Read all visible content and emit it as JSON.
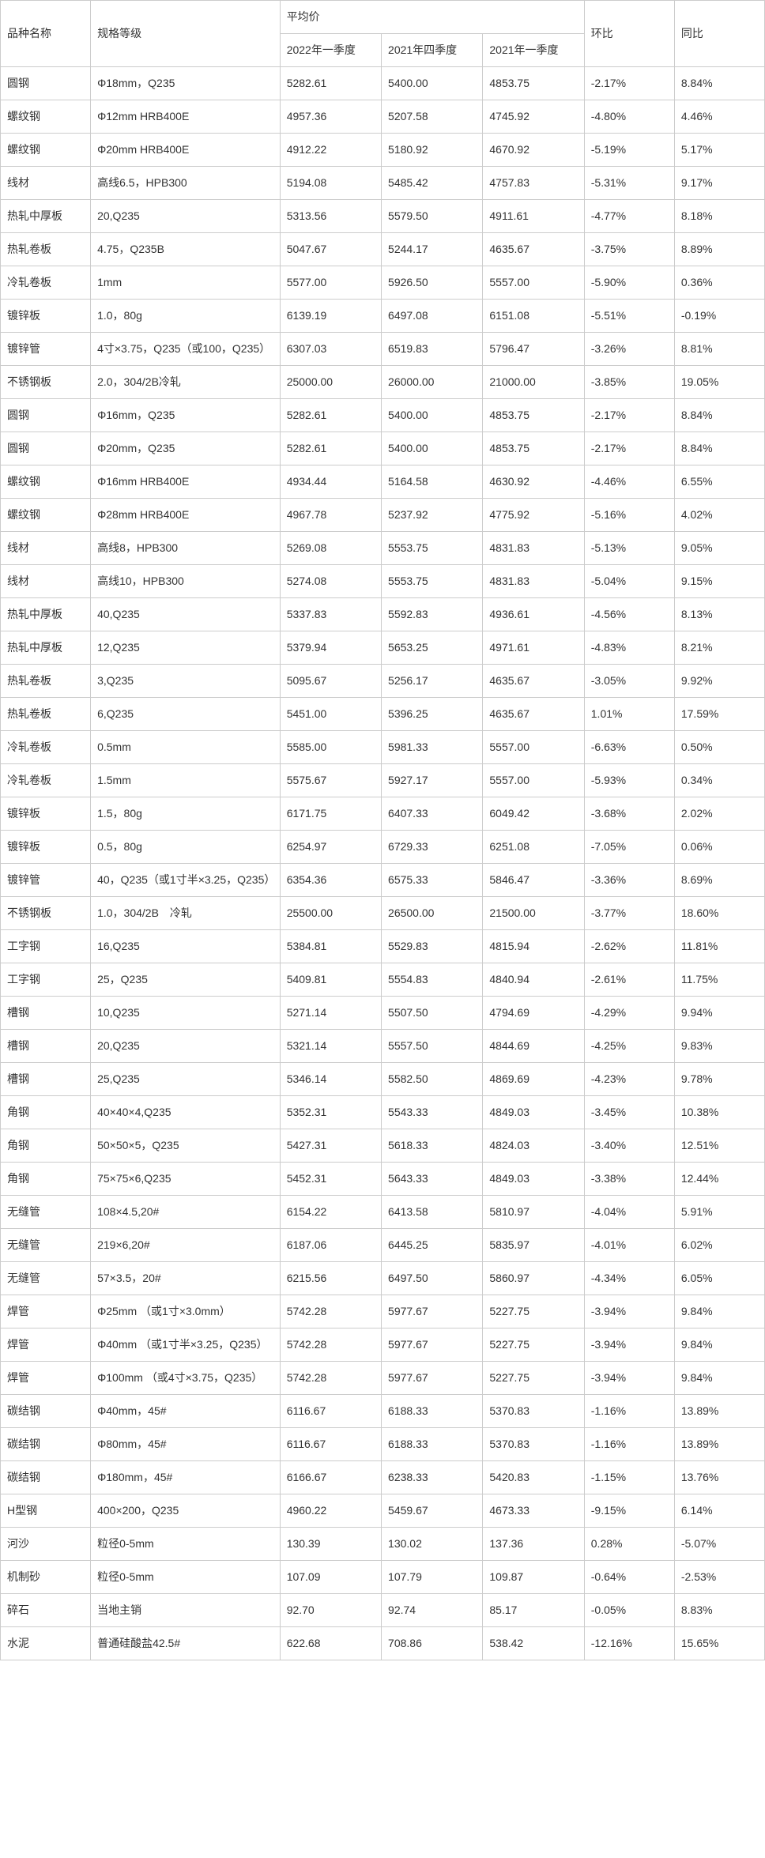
{
  "headers": {
    "col1": "品种名称",
    "col2": "规格等级",
    "avgPrice": "平均价",
    "q1_2022": "2022年一季度",
    "q4_2021": "2021年四季度",
    "q1_2021": "2021年一季度",
    "qoq": "环比",
    "yoy": "同比"
  },
  "rows": [
    {
      "name": "圆钢",
      "spec": "Φ18mm，Q235",
      "p1": "5282.61",
      "p2": "5400.00",
      "p3": "4853.75",
      "qoq": "-2.17%",
      "yoy": "8.84%"
    },
    {
      "name": "螺纹钢",
      "spec": "Φ12mm HRB400E",
      "p1": "4957.36",
      "p2": "5207.58",
      "p3": "4745.92",
      "qoq": "-4.80%",
      "yoy": "4.46%"
    },
    {
      "name": "螺纹钢",
      "spec": "Φ20mm HRB400E",
      "p1": "4912.22",
      "p2": "5180.92",
      "p3": "4670.92",
      "qoq": "-5.19%",
      "yoy": "5.17%"
    },
    {
      "name": "线材",
      "spec": "高线6.5，HPB300",
      "p1": "5194.08",
      "p2": "5485.42",
      "p3": "4757.83",
      "qoq": "-5.31%",
      "yoy": "9.17%"
    },
    {
      "name": "热轧中厚板",
      "spec": "20,Q235",
      "p1": "5313.56",
      "p2": "5579.50",
      "p3": "4911.61",
      "qoq": "-4.77%",
      "yoy": "8.18%"
    },
    {
      "name": "热轧卷板",
      "spec": "4.75，Q235B",
      "p1": "5047.67",
      "p2": "5244.17",
      "p3": "4635.67",
      "qoq": "-3.75%",
      "yoy": "8.89%"
    },
    {
      "name": "冷轧卷板",
      "spec": "1mm",
      "p1": "5577.00",
      "p2": "5926.50",
      "p3": "5557.00",
      "qoq": "-5.90%",
      "yoy": "0.36%"
    },
    {
      "name": "镀锌板",
      "spec": "1.0，80g",
      "p1": "6139.19",
      "p2": "6497.08",
      "p3": "6151.08",
      "qoq": "-5.51%",
      "yoy": "-0.19%"
    },
    {
      "name": "镀锌管",
      "spec": "4寸×3.75，Q235（或100，Q235）",
      "p1": "6307.03",
      "p2": "6519.83",
      "p3": "5796.47",
      "qoq": "-3.26%",
      "yoy": "8.81%"
    },
    {
      "name": "不锈钢板",
      "spec": "2.0，304/2B冷轧",
      "p1": "25000.00",
      "p2": "26000.00",
      "p3": "21000.00",
      "qoq": "-3.85%",
      "yoy": "19.05%"
    },
    {
      "name": "圆钢",
      "spec": "Φ16mm，Q235",
      "p1": "5282.61",
      "p2": "5400.00",
      "p3": "4853.75",
      "qoq": "-2.17%",
      "yoy": "8.84%"
    },
    {
      "name": "圆钢",
      "spec": "Φ20mm，Q235",
      "p1": "5282.61",
      "p2": "5400.00",
      "p3": "4853.75",
      "qoq": "-2.17%",
      "yoy": "8.84%"
    },
    {
      "name": "螺纹钢",
      "spec": "Φ16mm HRB400E",
      "p1": "4934.44",
      "p2": "5164.58",
      "p3": "4630.92",
      "qoq": "-4.46%",
      "yoy": "6.55%"
    },
    {
      "name": "螺纹钢",
      "spec": "Φ28mm HRB400E",
      "p1": "4967.78",
      "p2": "5237.92",
      "p3": "4775.92",
      "qoq": "-5.16%",
      "yoy": "4.02%"
    },
    {
      "name": "线材",
      "spec": "高线8，HPB300",
      "p1": "5269.08",
      "p2": "5553.75",
      "p3": "4831.83",
      "qoq": "-5.13%",
      "yoy": "9.05%"
    },
    {
      "name": "线材",
      "spec": "高线10，HPB300",
      "p1": "5274.08",
      "p2": "5553.75",
      "p3": "4831.83",
      "qoq": "-5.04%",
      "yoy": "9.15%"
    },
    {
      "name": "热轧中厚板",
      "spec": "40,Q235",
      "p1": "5337.83",
      "p2": "5592.83",
      "p3": "4936.61",
      "qoq": "-4.56%",
      "yoy": "8.13%"
    },
    {
      "name": "热轧中厚板",
      "spec": "12,Q235",
      "p1": "5379.94",
      "p2": "5653.25",
      "p3": "4971.61",
      "qoq": "-4.83%",
      "yoy": "8.21%"
    },
    {
      "name": "热轧卷板",
      "spec": "3,Q235",
      "p1": "5095.67",
      "p2": "5256.17",
      "p3": "4635.67",
      "qoq": "-3.05%",
      "yoy": "9.92%"
    },
    {
      "name": "热轧卷板",
      "spec": "6,Q235",
      "p1": "5451.00",
      "p2": "5396.25",
      "p3": "4635.67",
      "qoq": "1.01%",
      "yoy": "17.59%"
    },
    {
      "name": "冷轧卷板",
      "spec": "0.5mm",
      "p1": "5585.00",
      "p2": "5981.33",
      "p3": "5557.00",
      "qoq": "-6.63%",
      "yoy": "0.50%"
    },
    {
      "name": "冷轧卷板",
      "spec": "1.5mm",
      "p1": "5575.67",
      "p2": "5927.17",
      "p3": "5557.00",
      "qoq": "-5.93%",
      "yoy": "0.34%"
    },
    {
      "name": "镀锌板",
      "spec": "1.5，80g",
      "p1": "6171.75",
      "p2": "6407.33",
      "p3": "6049.42",
      "qoq": "-3.68%",
      "yoy": "2.02%"
    },
    {
      "name": "镀锌板",
      "spec": "0.5，80g",
      "p1": "6254.97",
      "p2": "6729.33",
      "p3": "6251.08",
      "qoq": "-7.05%",
      "yoy": "0.06%"
    },
    {
      "name": "镀锌管",
      "spec": "40，Q235（或1寸半×3.25，Q235）",
      "p1": "6354.36",
      "p2": "6575.33",
      "p3": "5846.47",
      "qoq": "-3.36%",
      "yoy": "8.69%"
    },
    {
      "name": "不锈钢板",
      "spec": "1.0，304/2B　冷轧",
      "p1": "25500.00",
      "p2": "26500.00",
      "p3": "21500.00",
      "qoq": "-3.77%",
      "yoy": "18.60%"
    },
    {
      "name": "工字钢",
      "spec": "16,Q235",
      "p1": "5384.81",
      "p2": "5529.83",
      "p3": "4815.94",
      "qoq": "-2.62%",
      "yoy": "11.81%"
    },
    {
      "name": "工字钢",
      "spec": "25，Q235",
      "p1": "5409.81",
      "p2": "5554.83",
      "p3": "4840.94",
      "qoq": "-2.61%",
      "yoy": "11.75%"
    },
    {
      "name": "槽钢",
      "spec": "10,Q235",
      "p1": "5271.14",
      "p2": "5507.50",
      "p3": "4794.69",
      "qoq": "-4.29%",
      "yoy": "9.94%"
    },
    {
      "name": "槽钢",
      "spec": "20,Q235",
      "p1": "5321.14",
      "p2": "5557.50",
      "p3": "4844.69",
      "qoq": "-4.25%",
      "yoy": "9.83%"
    },
    {
      "name": "槽钢",
      "spec": "25,Q235",
      "p1": "5346.14",
      "p2": "5582.50",
      "p3": "4869.69",
      "qoq": "-4.23%",
      "yoy": "9.78%"
    },
    {
      "name": "角钢",
      "spec": "40×40×4,Q235",
      "p1": "5352.31",
      "p2": "5543.33",
      "p3": "4849.03",
      "qoq": "-3.45%",
      "yoy": "10.38%"
    },
    {
      "name": "角钢",
      "spec": "50×50×5，Q235",
      "p1": "5427.31",
      "p2": "5618.33",
      "p3": "4824.03",
      "qoq": "-3.40%",
      "yoy": "12.51%"
    },
    {
      "name": "角钢",
      "spec": "75×75×6,Q235",
      "p1": "5452.31",
      "p2": "5643.33",
      "p3": "4849.03",
      "qoq": "-3.38%",
      "yoy": "12.44%"
    },
    {
      "name": "无缝管",
      "spec": "108×4.5,20#",
      "p1": "6154.22",
      "p2": "6413.58",
      "p3": "5810.97",
      "qoq": "-4.04%",
      "yoy": "5.91%"
    },
    {
      "name": "无缝管",
      "spec": "219×6,20#",
      "p1": "6187.06",
      "p2": "6445.25",
      "p3": "5835.97",
      "qoq": "-4.01%",
      "yoy": "6.02%"
    },
    {
      "name": "无缝管",
      "spec": "57×3.5，20#",
      "p1": "6215.56",
      "p2": "6497.50",
      "p3": "5860.97",
      "qoq": "-4.34%",
      "yoy": "6.05%"
    },
    {
      "name": "焊管",
      "spec": "Φ25mm （或1寸×3.0mm）",
      "p1": "5742.28",
      "p2": "5977.67",
      "p3": "5227.75",
      "qoq": "-3.94%",
      "yoy": "9.84%"
    },
    {
      "name": "焊管",
      "spec": "Φ40mm （或1寸半×3.25，Q235）",
      "p1": "5742.28",
      "p2": "5977.67",
      "p3": "5227.75",
      "qoq": "-3.94%",
      "yoy": "9.84%"
    },
    {
      "name": "焊管",
      "spec": "Φ100mm （或4寸×3.75，Q235）",
      "p1": "5742.28",
      "p2": "5977.67",
      "p3": "5227.75",
      "qoq": "-3.94%",
      "yoy": "9.84%"
    },
    {
      "name": "碳结钢",
      "spec": "Φ40mm，45#",
      "p1": "6116.67",
      "p2": "6188.33",
      "p3": "5370.83",
      "qoq": "-1.16%",
      "yoy": "13.89%"
    },
    {
      "name": "碳结钢",
      "spec": "Φ80mm，45#",
      "p1": "6116.67",
      "p2": "6188.33",
      "p3": "5370.83",
      "qoq": "-1.16%",
      "yoy": "13.89%"
    },
    {
      "name": "碳结钢",
      "spec": "Φ180mm，45#",
      "p1": "6166.67",
      "p2": "6238.33",
      "p3": "5420.83",
      "qoq": "-1.15%",
      "yoy": "13.76%"
    },
    {
      "name": "H型钢",
      "spec": "400×200，Q235",
      "p1": "4960.22",
      "p2": "5459.67",
      "p3": "4673.33",
      "qoq": "-9.15%",
      "yoy": "6.14%"
    },
    {
      "name": "河沙",
      "spec": "粒径0-5mm",
      "p1": "130.39",
      "p2": "130.02",
      "p3": "137.36",
      "qoq": "0.28%",
      "yoy": "-5.07%"
    },
    {
      "name": "机制砂",
      "spec": "粒径0-5mm",
      "p1": "107.09",
      "p2": "107.79",
      "p3": "109.87",
      "qoq": "-0.64%",
      "yoy": "-2.53%"
    },
    {
      "name": "碎石",
      "spec": "当地主销",
      "p1": "92.70",
      "p2": "92.74",
      "p3": "85.17",
      "qoq": "-0.05%",
      "yoy": "8.83%"
    },
    {
      "name": "水泥",
      "spec": "普通硅酸盐42.5#",
      "p1": "622.68",
      "p2": "708.86",
      "p3": "538.42",
      "qoq": "-12.16%",
      "yoy": "15.65%"
    }
  ]
}
